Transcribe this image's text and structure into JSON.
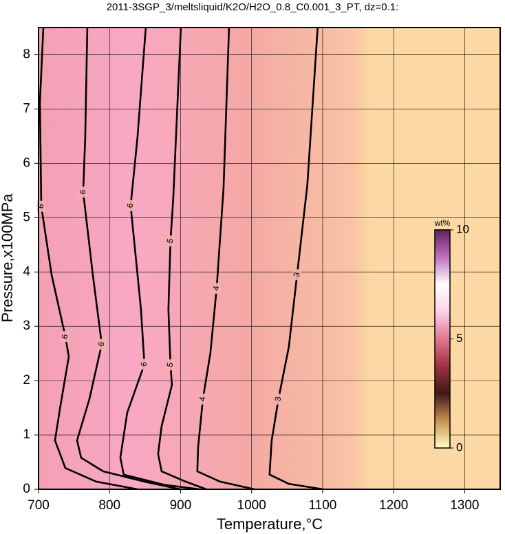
{
  "chart_data": {
    "type": "contour",
    "title": "2011-3SGP_3/meltsliquid/K2O/H2O_0.8_C0.001_3_PT, dz=0.1:",
    "x_label": "Temperature,°C",
    "y_label": "Pressure,x100MPa",
    "xlim": [
      700,
      1350
    ],
    "ylim": [
      0,
      8.5
    ],
    "xticks": [
      700,
      800,
      900,
      1000,
      1100,
      1200,
      1300
    ],
    "yticks": [
      0,
      1,
      2,
      3,
      4,
      5,
      6,
      7,
      8
    ],
    "grid": true,
    "color": "#000000",
    "contours": [
      {
        "level": 6,
        "x": [
          706.8,
          701.9,
          703.9,
          718.4,
          737.8,
          742.6,
          731.0,
          723.2,
          737.8,
          781.3,
          839.4
        ],
        "y": [
          8.5,
          7.12,
          5.21,
          3.95,
          2.81,
          2.44,
          1.55,
          0.9,
          0.39,
          0.14,
          0
        ]
      },
      {
        "level": 6,
        "x": [
          768.7,
          765.8,
          762.9,
          776.5,
          789.0,
          771.6,
          754.2,
          760.0,
          791.0,
          849.1,
          899.4
        ],
        "y": [
          8.5,
          6.49,
          5.47,
          3.94,
          2.67,
          1.66,
          0.9,
          0.58,
          0.33,
          0.14,
          0
        ]
      },
      {
        "level": 6,
        "x": [
          851.0,
          839.4,
          829.7,
          844.2,
          849.1,
          824.9,
          815.2,
          820.0,
          878.1,
          926.5
        ],
        "y": [
          8.5,
          6.49,
          5.22,
          3.31,
          2.3,
          1.41,
          0.58,
          0.27,
          0.08,
          0
        ]
      },
      {
        "level": 5,
        "x": [
          900.4,
          889.7,
          885.8,
          882.9,
          885.8,
          887.8,
          873.3,
          868.4,
          873.3,
          907.2,
          936.2
        ],
        "y": [
          8.5,
          5.35,
          4.57,
          3.31,
          2.29,
          1.92,
          1.16,
          0.65,
          0.33,
          0.14,
          0
        ]
      },
      {
        "level": 4,
        "x": [
          968.2,
          960.5,
          950.8,
          942.0,
          931.4,
          924.6,
          923.6,
          955.6,
          1004.0
        ],
        "y": [
          8.5,
          5.54,
          3.7,
          2.51,
          1.66,
          0.77,
          0.33,
          0.14,
          0
        ]
      },
      {
        "level": 3,
        "x": [
          1093.0,
          1078.5,
          1064.0,
          1052.4,
          1037.8,
          1028.2,
          1025.3,
          1052.4,
          1100.8
        ],
        "y": [
          8.5,
          5.6,
          3.95,
          2.62,
          1.66,
          0.89,
          0.27,
          0.1,
          0
        ]
      }
    ],
    "colorbar": {
      "label": "wt%",
      "zlim": [
        0,
        10
      ],
      "zticks": [
        0,
        5,
        10
      ],
      "colormap": [
        "#ffffc0",
        "#c89050",
        "#401818",
        "#a03040",
        "#e07890",
        "#ffd0e8",
        "#ffffff",
        "#c070c0",
        "#602060"
      ]
    }
  }
}
